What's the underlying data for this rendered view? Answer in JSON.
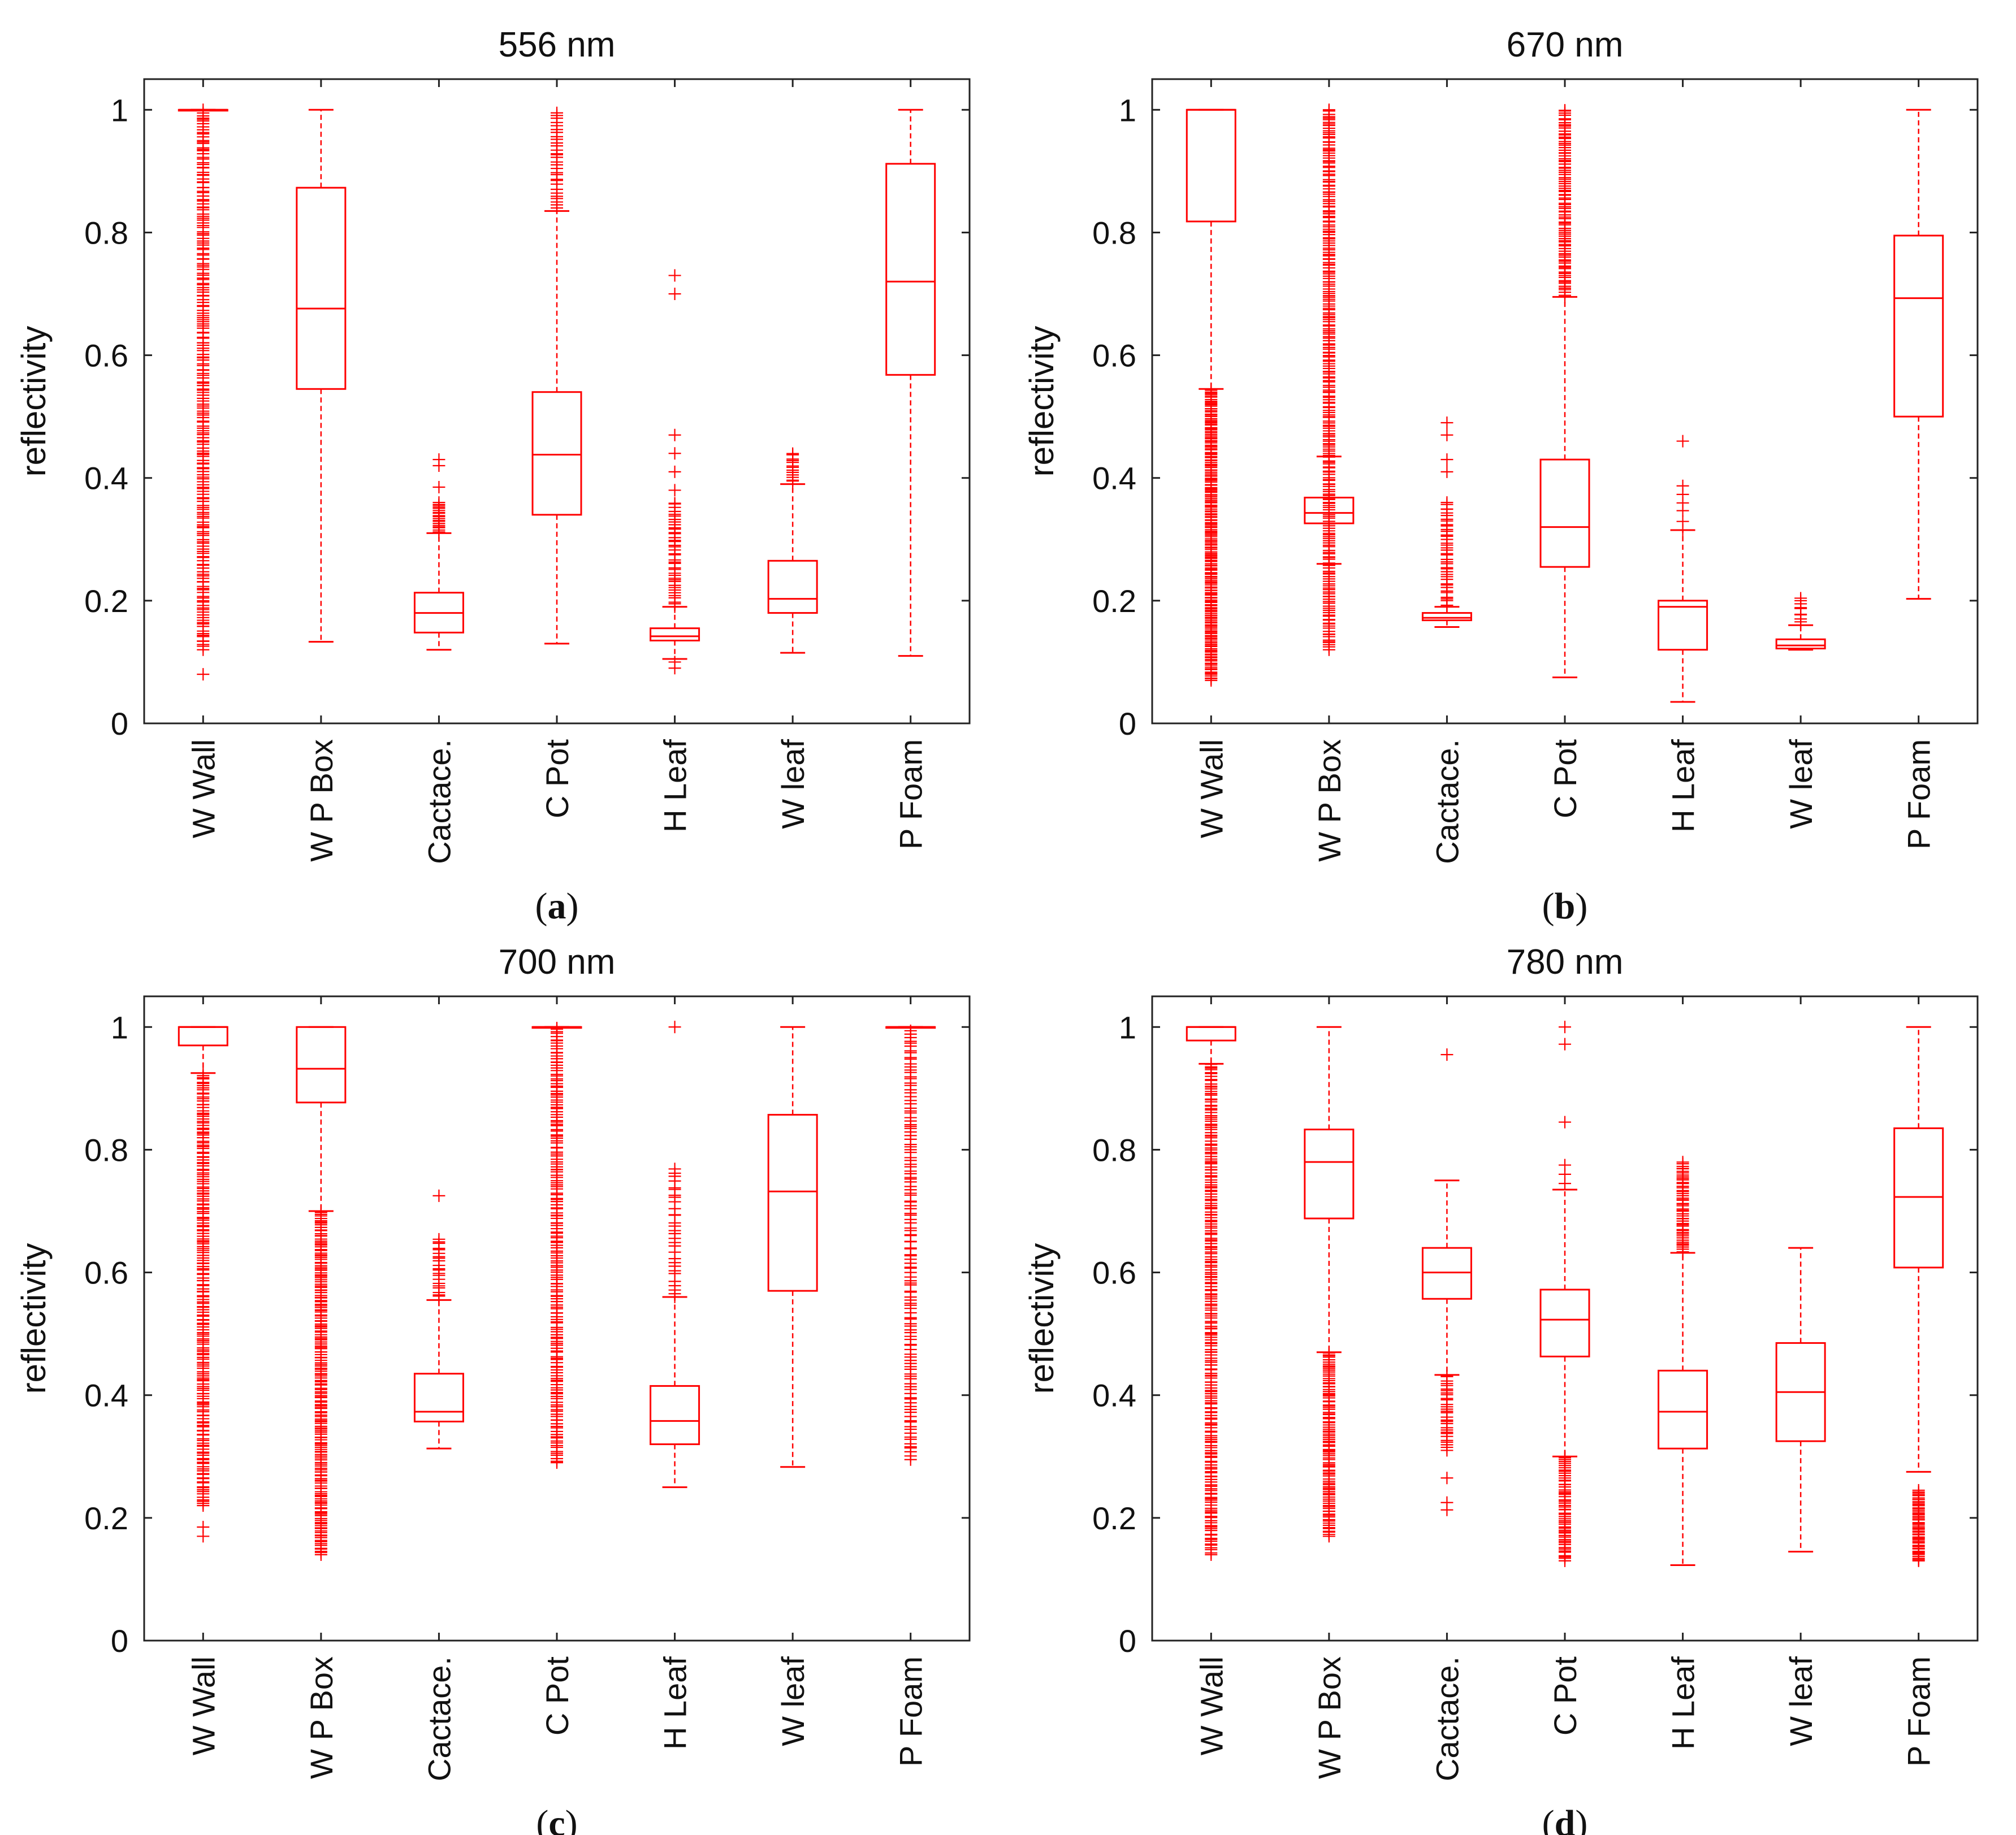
{
  "chart_data": [
    {
      "id": "a",
      "type": "boxplot",
      "title": "556 nm",
      "subfigure_label": "a",
      "ylabel": "reflectivity",
      "xlabel": "",
      "ylim": [
        0,
        1.05
      ],
      "yticks": [
        0,
        0.2,
        0.4,
        0.6,
        0.8,
        1
      ],
      "ytick_labels": [
        "0",
        "0.2",
        "0.4",
        "0.6",
        "0.8",
        "1"
      ],
      "color": "#ff0000",
      "categories": [
        "W Wall",
        "W P Box",
        "Cactace.",
        "C Pot",
        "H Leaf",
        "W leaf",
        "P Foam"
      ],
      "boxes": [
        {
          "q1": 1.0,
          "median": 1.0,
          "q3": 1.0,
          "whisker_low": 1.0,
          "whisker_high": 1.0,
          "outlier_range": [
            0.12,
            1.0
          ],
          "outlier_count": 220,
          "outliers": [
            0.08
          ]
        },
        {
          "q1": 0.545,
          "median": 0.676,
          "q3": 0.873,
          "whisker_low": 0.133,
          "whisker_high": 1.0,
          "outlier_range": null,
          "outlier_count": 0,
          "outliers": []
        },
        {
          "q1": 0.148,
          "median": 0.18,
          "q3": 0.213,
          "whisker_low": 0.12,
          "whisker_high": 0.31,
          "outlier_range": [
            0.31,
            0.36
          ],
          "outlier_count": 20,
          "outliers": [
            0.385,
            0.42,
            0.43
          ]
        },
        {
          "q1": 0.34,
          "median": 0.438,
          "q3": 0.54,
          "whisker_low": 0.13,
          "whisker_high": 0.835,
          "outlier_range": [
            0.84,
            0.995
          ],
          "outlier_count": 30,
          "outliers": []
        },
        {
          "q1": 0.135,
          "median": 0.142,
          "q3": 0.155,
          "whisker_low": 0.105,
          "whisker_high": 0.19,
          "outlier_range": [
            0.19,
            0.36
          ],
          "outlier_count": 40,
          "outliers": [
            0.09,
            0.1,
            0.38,
            0.41,
            0.44,
            0.47,
            0.7,
            0.73
          ]
        },
        {
          "q1": 0.18,
          "median": 0.203,
          "q3": 0.265,
          "whisker_low": 0.115,
          "whisker_high": 0.39,
          "outlier_range": [
            0.39,
            0.44
          ],
          "outlier_count": 14,
          "outliers": []
        },
        {
          "q1": 0.568,
          "median": 0.72,
          "q3": 0.912,
          "whisker_low": 0.11,
          "whisker_high": 1.0,
          "outlier_range": null,
          "outlier_count": 0,
          "outliers": []
        }
      ]
    },
    {
      "id": "b",
      "type": "boxplot",
      "title": "670 nm",
      "subfigure_label": "b",
      "ylabel": "reflectivity",
      "xlabel": "",
      "ylim": [
        0,
        1.05
      ],
      "yticks": [
        0,
        0.2,
        0.4,
        0.6,
        0.8,
        1
      ],
      "ytick_labels": [
        "0",
        "0.2",
        "0.4",
        "0.6",
        "0.8",
        "1"
      ],
      "color": "#ff0000",
      "categories": [
        "W Wall",
        "W P Box",
        "Cactace.",
        "C Pot",
        "H Leaf",
        "W leaf",
        "P Foam"
      ],
      "boxes": [
        {
          "q1": 0.818,
          "median": 1.0,
          "q3": 1.0,
          "whisker_low": 0.545,
          "whisker_high": 1.0,
          "outlier_range": [
            0.07,
            0.545
          ],
          "outlier_count": 200,
          "outliers": []
        },
        {
          "q1": 0.326,
          "median": 0.343,
          "q3": 0.368,
          "whisker_low": 0.26,
          "whisker_high": 0.435,
          "outlier_range": [
            0.12,
            1.0
          ],
          "outlier_count": 260,
          "outliers": []
        },
        {
          "q1": 0.168,
          "median": 0.172,
          "q3": 0.18,
          "whisker_low": 0.157,
          "whisker_high": 0.19,
          "outlier_range": [
            0.19,
            0.36
          ],
          "outlier_count": 40,
          "outliers": [
            0.41,
            0.43,
            0.47,
            0.49
          ]
        },
        {
          "q1": 0.255,
          "median": 0.32,
          "q3": 0.43,
          "whisker_low": 0.075,
          "whisker_high": 0.695,
          "outlier_range": [
            0.695,
            1.0
          ],
          "outlier_count": 90,
          "outliers": []
        },
        {
          "q1": 0.12,
          "median": 0.19,
          "q3": 0.2,
          "whisker_low": 0.035,
          "whisker_high": 0.315,
          "outlier_range": [
            0.315,
            0.39
          ],
          "outlier_count": 6,
          "outliers": [
            0.46
          ]
        },
        {
          "q1": 0.122,
          "median": 0.127,
          "q3": 0.137,
          "whisker_low": 0.12,
          "whisker_high": 0.16,
          "outlier_range": [
            0.16,
            0.205
          ],
          "outlier_count": 10,
          "outliers": []
        },
        {
          "q1": 0.5,
          "median": 0.693,
          "q3": 0.795,
          "whisker_low": 0.203,
          "whisker_high": 1.0,
          "outlier_range": null,
          "outlier_count": 0,
          "outliers": []
        }
      ]
    },
    {
      "id": "c",
      "type": "boxplot",
      "title": "700 nm",
      "subfigure_label": "c",
      "ylabel": "reflectivity",
      "xlabel": "",
      "ylim": [
        0,
        1.05
      ],
      "yticks": [
        0,
        0.2,
        0.4,
        0.6,
        0.8,
        1
      ],
      "ytick_labels": [
        "0",
        "0.2",
        "0.4",
        "0.6",
        "0.8",
        "1"
      ],
      "color": "#ff0000",
      "categories": [
        "W Wall",
        "W P Box",
        "Cactace.",
        "C Pot",
        "H Leaf",
        "W leaf",
        "P Foam"
      ],
      "boxes": [
        {
          "q1": 0.97,
          "median": 1.0,
          "q3": 1.0,
          "whisker_low": 0.925,
          "whisker_high": 1.0,
          "outlier_range": [
            0.22,
            0.925
          ],
          "outlier_count": 200,
          "outliers": [
            0.17,
            0.185
          ]
        },
        {
          "q1": 0.877,
          "median": 0.932,
          "q3": 1.0,
          "whisker_low": 0.7,
          "whisker_high": 1.0,
          "outlier_range": [
            0.14,
            0.7
          ],
          "outlier_count": 190,
          "outliers": []
        },
        {
          "q1": 0.357,
          "median": 0.373,
          "q3": 0.435,
          "whisker_low": 0.313,
          "whisker_high": 0.555,
          "outlier_range": [
            0.555,
            0.655
          ],
          "outlier_count": 22,
          "outliers": [
            0.725
          ]
        },
        {
          "q1": 1.0,
          "median": 1.0,
          "q3": 1.0,
          "whisker_low": 1.0,
          "whisker_high": 1.0,
          "outlier_range": [
            0.29,
            1.0
          ],
          "outlier_count": 180,
          "outliers": []
        },
        {
          "q1": 0.32,
          "median": 0.358,
          "q3": 0.415,
          "whisker_low": 0.25,
          "whisker_high": 0.56,
          "outlier_range": [
            0.56,
            0.77
          ],
          "outlier_count": 30,
          "outliers": [
            1.0
          ]
        },
        {
          "q1": 0.57,
          "median": 0.732,
          "q3": 0.857,
          "whisker_low": 0.283,
          "whisker_high": 1.0,
          "outlier_range": null,
          "outlier_count": 0,
          "outliers": []
        },
        {
          "q1": 1.0,
          "median": 1.0,
          "q3": 1.0,
          "whisker_low": 1.0,
          "whisker_high": 1.0,
          "outlier_range": [
            0.295,
            0.995
          ],
          "outlier_count": 130,
          "outliers": []
        }
      ]
    },
    {
      "id": "d",
      "type": "boxplot",
      "title": "780 nm",
      "subfigure_label": "d",
      "ylabel": "reflectivity",
      "xlabel": "",
      "ylim": [
        0,
        1.05
      ],
      "yticks": [
        0,
        0.2,
        0.4,
        0.6,
        0.8,
        1
      ],
      "ytick_labels": [
        "0",
        "0.2",
        "0.4",
        "0.6",
        "0.8",
        "1"
      ],
      "color": "#ff0000",
      "categories": [
        "W Wall",
        "W P Box",
        "Cactace.",
        "C Pot",
        "H Leaf",
        "W leaf",
        "P Foam"
      ],
      "boxes": [
        {
          "q1": 0.978,
          "median": 1.0,
          "q3": 1.0,
          "whisker_low": 0.94,
          "whisker_high": 1.0,
          "outlier_range": [
            0.14,
            0.94
          ],
          "outlier_count": 230,
          "outliers": []
        },
        {
          "q1": 0.688,
          "median": 0.78,
          "q3": 0.833,
          "whisker_low": 0.47,
          "whisker_high": 1.0,
          "outlier_range": [
            0.17,
            0.47
          ],
          "outlier_count": 100,
          "outliers": []
        },
        {
          "q1": 0.557,
          "median": 0.6,
          "q3": 0.64,
          "whisker_low": 0.433,
          "whisker_high": 0.75,
          "outlier_range": [
            0.31,
            0.433
          ],
          "outlier_count": 30,
          "outliers": [
            0.213,
            0.225,
            0.265,
            0.955
          ]
        },
        {
          "q1": 0.463,
          "median": 0.523,
          "q3": 0.572,
          "whisker_low": 0.3,
          "whisker_high": 0.735,
          "outlier_range": [
            0.13,
            0.3
          ],
          "outlier_count": 55,
          "outliers": [
            0.745,
            0.76,
            0.775,
            0.845,
            0.972,
            1.0
          ]
        },
        {
          "q1": 0.313,
          "median": 0.373,
          "q3": 0.44,
          "whisker_low": 0.123,
          "whisker_high": 0.632,
          "outlier_range": [
            0.632,
            0.78
          ],
          "outlier_count": 50,
          "outliers": []
        },
        {
          "q1": 0.325,
          "median": 0.405,
          "q3": 0.485,
          "whisker_low": 0.145,
          "whisker_high": 0.64,
          "outlier_range": null,
          "outlier_count": 0,
          "outliers": []
        },
        {
          "q1": 0.608,
          "median": 0.723,
          "q3": 0.835,
          "whisker_low": 0.275,
          "whisker_high": 1.0,
          "outlier_range": [
            0.13,
            0.245
          ],
          "outlier_count": 50,
          "outliers": []
        }
      ]
    }
  ]
}
